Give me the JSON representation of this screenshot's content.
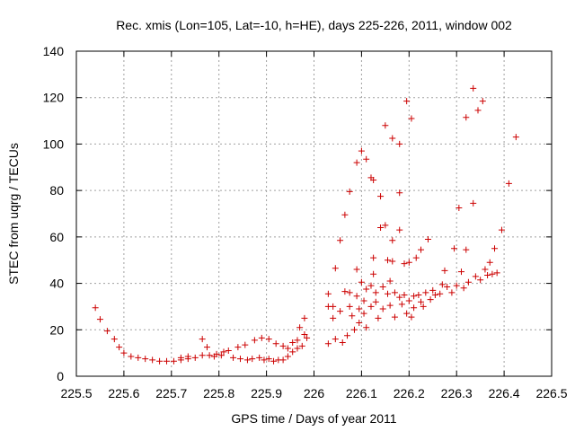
{
  "chart_data": {
    "type": "scatter",
    "title": "Rec. xmis (Lon=105, Lat=-10, h=HE), days 225-226, 2011, window 002",
    "xlabel": "GPS time / Days of year 2011",
    "ylabel": "STEC from uqrg / TECUs",
    "xlim": [
      225.5,
      226.5
    ],
    "ylim": [
      0,
      140
    ],
    "xticks": [
      "225.5",
      "225.6",
      "225.7",
      "225.8",
      "225.9",
      "226",
      "226.1",
      "226.2",
      "226.3",
      "226.4",
      "226.5"
    ],
    "yticks": [
      "0",
      "20",
      "40",
      "60",
      "80",
      "100",
      "120",
      "140"
    ],
    "grid": true,
    "marker": "+",
    "marker_color": "#cc0000",
    "points": [
      [
        225.54,
        29.5
      ],
      [
        225.55,
        24.5
      ],
      [
        225.565,
        19.5
      ],
      [
        225.58,
        16
      ],
      [
        225.59,
        12.5
      ],
      [
        225.6,
        10
      ],
      [
        225.615,
        8.5
      ],
      [
        225.63,
        8
      ],
      [
        225.645,
        7.5
      ],
      [
        225.66,
        7
      ],
      [
        225.675,
        6.5
      ],
      [
        225.69,
        6.5
      ],
      [
        225.705,
        6.5
      ],
      [
        225.72,
        7
      ],
      [
        225.72,
        8
      ],
      [
        225.735,
        7.5
      ],
      [
        225.735,
        8.5
      ],
      [
        225.75,
        8
      ],
      [
        225.765,
        16
      ],
      [
        225.775,
        12.5
      ],
      [
        225.765,
        9
      ],
      [
        225.78,
        9
      ],
      [
        225.79,
        8.5
      ],
      [
        225.795,
        9.5
      ],
      [
        225.805,
        9
      ],
      [
        225.81,
        10.5
      ],
      [
        225.82,
        11
      ],
      [
        225.83,
        8
      ],
      [
        225.84,
        12.5
      ],
      [
        225.845,
        7.5
      ],
      [
        225.855,
        13.5
      ],
      [
        225.86,
        7
      ],
      [
        225.87,
        7.5
      ],
      [
        225.875,
        15.5
      ],
      [
        225.885,
        8
      ],
      [
        225.89,
        16.5
      ],
      [
        225.895,
        7
      ],
      [
        225.905,
        16
      ],
      [
        225.905,
        7.5
      ],
      [
        225.915,
        6.5
      ],
      [
        225.92,
        14
      ],
      [
        225.925,
        7
      ],
      [
        225.935,
        13
      ],
      [
        225.935,
        7
      ],
      [
        225.945,
        12
      ],
      [
        225.945,
        8.5
      ],
      [
        225.955,
        14.5
      ],
      [
        225.955,
        10.5
      ],
      [
        225.965,
        15.5
      ],
      [
        225.965,
        12
      ],
      [
        225.97,
        21
      ],
      [
        225.975,
        13
      ],
      [
        225.98,
        18
      ],
      [
        225.98,
        25
      ],
      [
        225.985,
        16.5
      ],
      [
        226.03,
        35.5
      ],
      [
        226.03,
        30
      ],
      [
        226.03,
        14
      ],
      [
        226.04,
        30
      ],
      [
        226.04,
        25
      ],
      [
        226.045,
        46.5
      ],
      [
        226.045,
        16
      ],
      [
        226.055,
        58.5
      ],
      [
        226.055,
        28
      ],
      [
        226.06,
        14.5
      ],
      [
        226.065,
        69.5
      ],
      [
        226.065,
        36.5
      ],
      [
        226.07,
        17.5
      ],
      [
        226.075,
        79.5
      ],
      [
        226.075,
        36
      ],
      [
        226.075,
        30
      ],
      [
        226.08,
        26
      ],
      [
        226.085,
        20
      ],
      [
        226.09,
        92
      ],
      [
        226.09,
        46
      ],
      [
        226.09,
        34.5
      ],
      [
        226.095,
        29
      ],
      [
        226.095,
        23
      ],
      [
        226.1,
        97
      ],
      [
        226.1,
        40.5
      ],
      [
        226.105,
        32.5
      ],
      [
        226.105,
        27
      ],
      [
        226.11,
        93.5
      ],
      [
        226.11,
        37.5
      ],
      [
        226.11,
        21
      ],
      [
        226.12,
        85.5
      ],
      [
        226.125,
        84.5
      ],
      [
        226.12,
        39
      ],
      [
        226.12,
        30
      ],
      [
        226.125,
        51
      ],
      [
        226.125,
        44
      ],
      [
        226.13,
        36
      ],
      [
        226.13,
        32
      ],
      [
        226.135,
        25
      ],
      [
        226.14,
        77.5
      ],
      [
        226.14,
        64
      ],
      [
        226.145,
        38.5
      ],
      [
        226.145,
        29
      ],
      [
        226.15,
        108
      ],
      [
        226.15,
        65
      ],
      [
        226.155,
        50
      ],
      [
        226.155,
        35.5
      ],
      [
        226.16,
        41
      ],
      [
        226.16,
        30.5
      ],
      [
        226.165,
        58.5
      ],
      [
        226.165,
        49.5
      ],
      [
        226.165,
        102.5
      ],
      [
        226.17,
        36
      ],
      [
        226.17,
        25.5
      ],
      [
        226.18,
        100
      ],
      [
        226.18,
        79
      ],
      [
        226.18,
        63
      ],
      [
        226.18,
        34
      ],
      [
        226.185,
        31
      ],
      [
        226.19,
        48.5
      ],
      [
        226.19,
        35
      ],
      [
        226.195,
        118.5
      ],
      [
        226.195,
        27
      ],
      [
        226.2,
        49
      ],
      [
        226.2,
        32.5
      ],
      [
        226.205,
        111
      ],
      [
        226.205,
        25.5
      ],
      [
        226.21,
        34.5
      ],
      [
        226.21,
        29.5
      ],
      [
        226.215,
        51
      ],
      [
        226.22,
        35
      ],
      [
        226.225,
        54.5
      ],
      [
        226.225,
        32
      ],
      [
        226.23,
        30
      ],
      [
        226.235,
        36
      ],
      [
        226.24,
        59
      ],
      [
        226.245,
        33
      ],
      [
        226.25,
        37
      ],
      [
        226.255,
        35
      ],
      [
        226.265,
        35.5
      ],
      [
        226.27,
        39.5
      ],
      [
        226.275,
        45.5
      ],
      [
        226.28,
        38.5
      ],
      [
        226.29,
        36
      ],
      [
        226.295,
        55
      ],
      [
        226.3,
        39
      ],
      [
        226.305,
        72.5
      ],
      [
        226.31,
        45
      ],
      [
        226.315,
        38
      ],
      [
        226.32,
        111.5
      ],
      [
        226.32,
        54.5
      ],
      [
        226.325,
        40.5
      ],
      [
        226.335,
        124
      ],
      [
        226.335,
        74.5
      ],
      [
        226.34,
        43
      ],
      [
        226.345,
        114.5
      ],
      [
        226.35,
        41.5
      ],
      [
        226.355,
        118.5
      ],
      [
        226.36,
        46
      ],
      [
        226.365,
        43.5
      ],
      [
        226.37,
        49
      ],
      [
        226.375,
        44
      ],
      [
        226.38,
        55
      ],
      [
        226.385,
        44.5
      ],
      [
        226.395,
        63
      ],
      [
        226.41,
        83
      ],
      [
        226.425,
        103
      ]
    ]
  }
}
